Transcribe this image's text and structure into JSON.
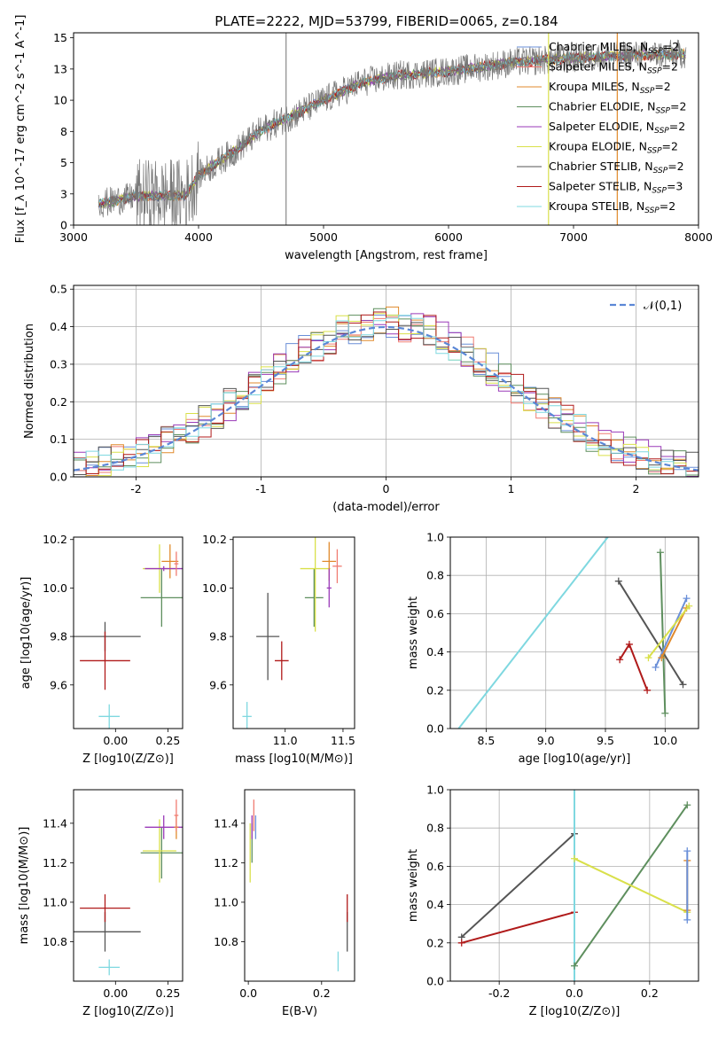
{
  "figure": {
    "title": "PLATE=2222, MJD=53799, FIBERID=0065, z=0.184"
  },
  "chart_data": [
    {
      "id": "spectrum",
      "type": "line",
      "xlabel": "wavelength [Angstrom, rest frame]",
      "ylabel": "Flux [f_λ 10^-17 erg cm^-2 s^-1 A^-1]",
      "xlim": [
        3000,
        8000
      ],
      "ylim": [
        0,
        15.4
      ],
      "xticks": [
        3000,
        4000,
        5000,
        6000,
        7000,
        8000
      ],
      "yticks": [
        0.0,
        2.5,
        5.0,
        7.5,
        10.0,
        12.5,
        15.0
      ],
      "legend_placement": "top-right",
      "legend": [
        {
          "label": "Chabrier MILES",
          "n": "=2",
          "color": "#6a8fd8"
        },
        {
          "label": "Salpeter MILES",
          "n": "=2",
          "color": "#f07c72"
        },
        {
          "label": "Kroupa MILES",
          "n": "=2",
          "color": "#e08a2c"
        },
        {
          "label": "Chabrier ELODIE",
          "n": "=2",
          "color": "#5e8f5e"
        },
        {
          "label": "Salpeter ELODIE",
          "n": "=2",
          "color": "#9a3ab8"
        },
        {
          "label": "Kroupa ELODIE",
          "n": "=2",
          "color": "#d9e04a"
        },
        {
          "label": "Chabrier STELIB",
          "n": "=2",
          "color": "#555555"
        },
        {
          "label": "Salpeter STELIB",
          "n": "=3",
          "color": "#b01a1a"
        },
        {
          "label": "Kroupa STELIB",
          "n": "=2",
          "color": "#7fd8e0"
        }
      ],
      "spectrum_knots": [
        [
          3200,
          1.7
        ],
        [
          3500,
          2.3
        ],
        [
          3900,
          2.4
        ],
        [
          4000,
          4.0
        ],
        [
          4300,
          6.0
        ],
        [
          4500,
          7.6
        ],
        [
          4800,
          9.0
        ],
        [
          5000,
          10.0
        ],
        [
          5300,
          11.4
        ],
        [
          5600,
          12.0
        ],
        [
          6000,
          12.3
        ],
        [
          6500,
          13.0
        ],
        [
          7000,
          13.4
        ],
        [
          7500,
          13.6
        ],
        [
          7900,
          13.7
        ]
      ],
      "noise_amplitude_spectrum": 1.2,
      "vertical_lines": [
        {
          "x": 6800,
          "color": "#d9e04a"
        },
        {
          "x": 7350,
          "color": "#e08a2c"
        },
        {
          "x": 4700,
          "color": "#888888"
        }
      ]
    },
    {
      "id": "residuals",
      "type": "histogram",
      "xlabel": "(data-model)/error",
      "ylabel": "Normed distribution",
      "xlim": [
        -2.5,
        2.5
      ],
      "ylim": [
        0,
        0.51
      ],
      "xticks": [
        -2,
        -1,
        0,
        1,
        2
      ],
      "yticks": [
        0.0,
        0.1,
        0.2,
        0.3,
        0.4,
        0.5
      ],
      "grid": true,
      "bin_width": 0.1,
      "gaussian": {
        "label": "𝒩(0,1)",
        "color": "#5b87d6",
        "mean": 0,
        "sigma": 1
      },
      "legend_placement": "top-right"
    },
    {
      "id": "age_vs_Z",
      "type": "errorbar",
      "xlabel": "Z [log10(Z/Z⊙)]",
      "ylabel": "age  [log10(age/yr)]",
      "xlim": [
        -0.2,
        0.32
      ],
      "ylim": [
        9.42,
        10.21
      ],
      "xticks": [
        0.0,
        0.25
      ],
      "yticks": [
        9.6,
        9.8,
        10.0,
        10.2
      ],
      "points": [
        {
          "color": "#555555",
          "x": -0.05,
          "xerr": 0.17,
          "y": 9.8,
          "yerr": 0.06
        },
        {
          "color": "#b01a1a",
          "x": -0.05,
          "xerr": 0.12,
          "y": 9.7,
          "yerr": 0.12
        },
        {
          "color": "#7fd8e0",
          "x": -0.03,
          "xerr": 0.05,
          "y": 9.47,
          "yerr": 0.05
        },
        {
          "color": "#5e8f5e",
          "x": 0.22,
          "xerr": 0.1,
          "y": 9.96,
          "yerr": 0.12
        },
        {
          "color": "#d9e04a",
          "x": 0.21,
          "xerr": 0.08,
          "y": 10.08,
          "yerr": 0.1
        },
        {
          "color": "#e08a2c",
          "x": 0.26,
          "xerr": 0.04,
          "y": 10.11,
          "yerr": 0.07
        },
        {
          "color": "#9a3ab8",
          "x": 0.23,
          "xerr": 0.09,
          "y": 10.08,
          "yerr": 0.01
        },
        {
          "color": "#f07c72",
          "x": 0.29,
          "xerr": 0.01,
          "y": 10.1,
          "yerr": 0.05
        }
      ]
    },
    {
      "id": "age_vs_mass",
      "type": "errorbar",
      "xlabel": "mass [log10(M/M⊙)]",
      "ylabel": "",
      "xlim": [
        10.55,
        11.6
      ],
      "ylim": [
        9.42,
        10.21
      ],
      "xticks": [
        11.0,
        11.5
      ],
      "yticks": [
        9.6,
        9.8,
        10.0,
        10.2
      ],
      "points": [
        {
          "color": "#555555",
          "x": 10.85,
          "xerr": 0.1,
          "y": 9.8,
          "yerr": 0.18
        },
        {
          "color": "#b01a1a",
          "x": 10.97,
          "xerr": 0.06,
          "y": 9.7,
          "yerr": 0.08
        },
        {
          "color": "#7fd8e0",
          "x": 10.67,
          "xerr": 0.04,
          "y": 9.47,
          "yerr": 0.06
        },
        {
          "color": "#5e8f5e",
          "x": 11.25,
          "xerr": 0.08,
          "y": 9.96,
          "yerr": 0.12
        },
        {
          "color": "#d9e04a",
          "x": 11.26,
          "xerr": 0.13,
          "y": 10.08,
          "yerr": 0.26
        },
        {
          "color": "#e08a2c",
          "x": 11.38,
          "xerr": 0.06,
          "y": 10.11,
          "yerr": 0.08
        },
        {
          "color": "#9a3ab8",
          "x": 11.38,
          "xerr": 0.02,
          "y": 10.0,
          "yerr": 0.08
        },
        {
          "color": "#f07c72",
          "x": 11.45,
          "xerr": 0.04,
          "y": 10.09,
          "yerr": 0.07
        }
      ]
    },
    {
      "id": "massweight_vs_age",
      "type": "line",
      "xlabel": "age  [log10(age/yr)]",
      "ylabel": "mass weight",
      "xlim": [
        8.2,
        10.28
      ],
      "ylim": [
        0,
        1.0
      ],
      "xticks": [
        8.5,
        9.0,
        9.5,
        10.0
      ],
      "yticks": [
        0.0,
        0.2,
        0.4,
        0.6,
        0.8,
        1.0
      ],
      "grid": true,
      "series": [
        {
          "color": "#7fd8e0",
          "x": [
            8.27,
            9.52
          ],
          "y": [
            0.0,
            1.0
          ],
          "markers": false
        },
        {
          "color": "#555555",
          "x": [
            9.61,
            10.15
          ],
          "y": [
            0.77,
            0.23
          ],
          "markers": true
        },
        {
          "color": "#5e8f5e",
          "x": [
            9.96,
            10.0
          ],
          "y": [
            0.92,
            0.08
          ],
          "markers": true
        },
        {
          "color": "#b01a1a",
          "x": [
            9.62,
            9.7,
            9.85
          ],
          "y": [
            0.36,
            0.44,
            0.2
          ],
          "markers": true
        },
        {
          "color": "#6a8fd8",
          "x": [
            9.92,
            10.18
          ],
          "y": [
            0.32,
            0.68
          ],
          "markers": true
        },
        {
          "color": "#e08a2c",
          "x": [
            9.97,
            10.18
          ],
          "y": [
            0.37,
            0.63
          ],
          "markers": true
        },
        {
          "color": "#d9e04a",
          "x": [
            9.86,
            10.2
          ],
          "y": [
            0.37,
            0.64
          ],
          "markers": true
        }
      ]
    },
    {
      "id": "mass_vs_Z",
      "type": "errorbar",
      "xlabel": "Z [log10(Z/Z⊙)]",
      "ylabel": "mass [log10(M/M⊙)]",
      "xlim": [
        -0.2,
        0.32
      ],
      "ylim": [
        10.6,
        11.57
      ],
      "xticks": [
        0.0,
        0.25
      ],
      "yticks": [
        10.8,
        11.0,
        11.2,
        11.4
      ],
      "points": [
        {
          "color": "#555555",
          "x": -0.05,
          "xerr": 0.17,
          "y": 10.85,
          "yerr": 0.1
        },
        {
          "color": "#b01a1a",
          "x": -0.05,
          "xerr": 0.12,
          "y": 10.97,
          "yerr": 0.07
        },
        {
          "color": "#7fd8e0",
          "x": -0.03,
          "xerr": 0.05,
          "y": 10.67,
          "yerr": 0.04
        },
        {
          "color": "#5e8f5e",
          "x": 0.22,
          "xerr": 0.1,
          "y": 11.25,
          "yerr": 0.13
        },
        {
          "color": "#d9e04a",
          "x": 0.21,
          "xerr": 0.08,
          "y": 11.26,
          "yerr": 0.16
        },
        {
          "color": "#9a3ab8",
          "x": 0.23,
          "xerr": 0.09,
          "y": 11.38,
          "yerr": 0.06
        },
        {
          "color": "#e08a2c",
          "x": 0.29,
          "xerr": 0.01,
          "y": 11.38,
          "yerr": 0.06
        },
        {
          "color": "#f07c72",
          "x": 0.29,
          "xerr": 0.01,
          "y": 11.44,
          "yerr": 0.08
        }
      ]
    },
    {
      "id": "mass_vs_ebv",
      "type": "errorbar",
      "xlabel": "E(B-V)",
      "ylabel": "",
      "xlim": [
        -0.01,
        0.29
      ],
      "ylim": [
        10.6,
        11.57
      ],
      "xticks": [
        0.0,
        0.2
      ],
      "yticks": [
        10.8,
        11.0,
        11.2,
        11.4
      ],
      "points": [
        {
          "color": "#555555",
          "x": 0.27,
          "xerr": 0,
          "y": 10.85,
          "yerr": 0.1
        },
        {
          "color": "#b01a1a",
          "x": 0.27,
          "xerr": 0,
          "y": 10.97,
          "yerr": 0.07
        },
        {
          "color": "#7fd8e0",
          "x": 0.245,
          "xerr": 0,
          "y": 10.7,
          "yerr": 0.05
        },
        {
          "color": "#d9e04a",
          "x": 0.005,
          "xerr": 0,
          "y": 11.25,
          "yerr": 0.15
        },
        {
          "color": "#5e8f5e",
          "x": 0.01,
          "xerr": 0,
          "y": 11.3,
          "yerr": 0.1
        },
        {
          "color": "#9a3ab8",
          "x": 0.01,
          "xerr": 0,
          "y": 11.38,
          "yerr": 0.06
        },
        {
          "color": "#f07c72",
          "x": 0.015,
          "xerr": 0,
          "y": 11.44,
          "yerr": 0.08
        },
        {
          "color": "#6a8fd8",
          "x": 0.02,
          "xerr": 0,
          "y": 11.38,
          "yerr": 0.06
        }
      ]
    },
    {
      "id": "massweight_vs_Z",
      "type": "line",
      "xlabel": "Z [log10(Z/Z⊙)]",
      "ylabel": "mass weight",
      "xlim": [
        -0.33,
        0.33
      ],
      "ylim": [
        0,
        1.0
      ],
      "xticks": [
        -0.2,
        0.0,
        0.2
      ],
      "yticks": [
        0.0,
        0.2,
        0.4,
        0.6,
        0.8,
        1.0
      ],
      "grid": true,
      "series": [
        {
          "color": "#555555",
          "x": [
            -0.3,
            0.0
          ],
          "y": [
            0.23,
            0.77
          ],
          "markers": true
        },
        {
          "color": "#b01a1a",
          "x": [
            -0.3,
            0.0
          ],
          "y": [
            0.2,
            0.36
          ],
          "markers": true
        },
        {
          "color": "#7fd8e0",
          "x": [
            0.0,
            0.0
          ],
          "y": [
            0.0,
            1.0
          ],
          "markers": false
        },
        {
          "color": "#5e8f5e",
          "x": [
            0.0,
            0.3
          ],
          "y": [
            0.08,
            0.92
          ],
          "markers": true
        },
        {
          "color": "#d9e04a",
          "x": [
            0.0,
            0.3
          ],
          "y": [
            0.64,
            0.36
          ],
          "markers": true
        },
        {
          "color": "#e08a2c",
          "x": [
            0.3,
            0.3
          ],
          "y": [
            0.37,
            0.63
          ],
          "markers": true
        },
        {
          "color": "#6a8fd8",
          "x": [
            0.3,
            0.3
          ],
          "y": [
            0.32,
            0.68
          ],
          "markers": true
        }
      ]
    }
  ]
}
